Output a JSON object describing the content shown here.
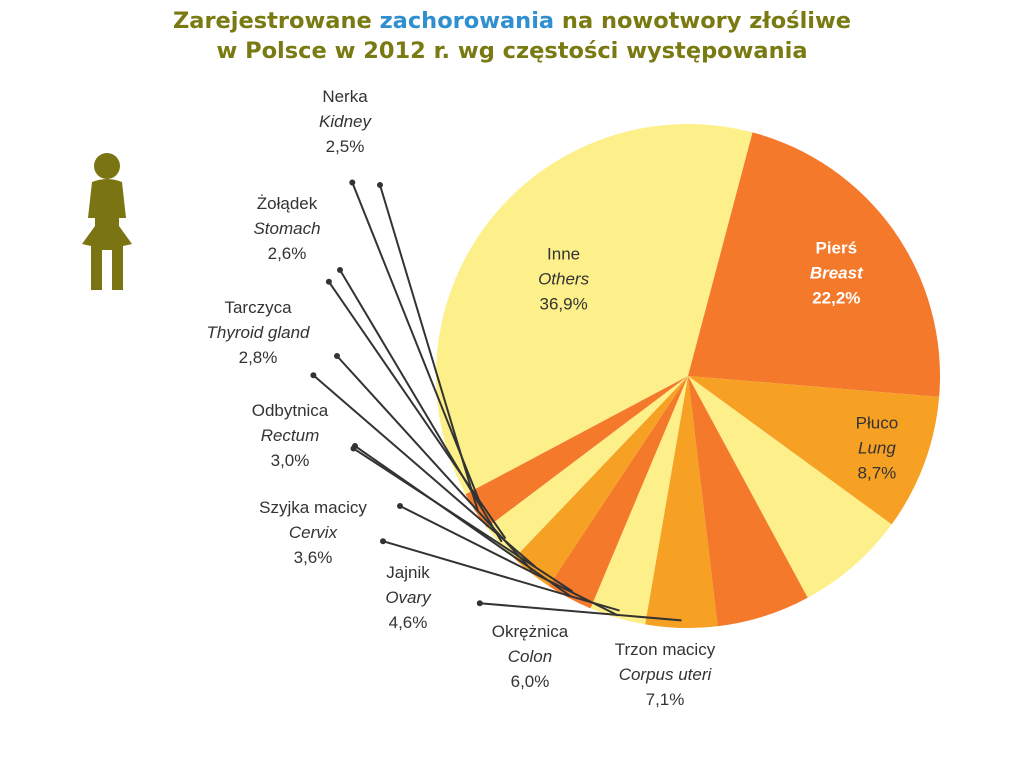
{
  "title": {
    "line1_pre": "Zarejestrowane ",
    "line1_highlight": "zachorowania",
    "line1_post": " na nowotwory złośliwe",
    "line2": "w Polsce w 2012 r. wg częstości występowania"
  },
  "colors": {
    "title": "#7a7a12",
    "highlight": "#2f8fd0",
    "figure_icon": "#7a7412",
    "pale_yellow": "#fdf08a",
    "orange": "#f4792a",
    "amber": "#f6a024"
  },
  "icon": "female-figure-icon",
  "chart_data": {
    "type": "pie",
    "slices": [
      {
        "pl": "Inne",
        "en": "Others",
        "value_label": "36,9%",
        "value": 36.9,
        "color": "#fdf08a"
      },
      {
        "pl": "Pierś",
        "en": "Breast",
        "value_label": "22,2%",
        "value": 22.2,
        "color": "#f4792a"
      },
      {
        "pl": "Płuco",
        "en": "Lung",
        "value_label": "8,7%",
        "value": 8.7,
        "color": "#f6a024"
      },
      {
        "pl": "Trzon macicy",
        "en": "Corpus uteri",
        "value_label": "7,1%",
        "value": 7.1,
        "color": "#fdf08a"
      },
      {
        "pl": "Okrężnica",
        "en": "Colon",
        "value_label": "6,0%",
        "value": 6.0,
        "color": "#f4792a"
      },
      {
        "pl": "Jajnik",
        "en": "Ovary",
        "value_label": "4,6%",
        "value": 4.6,
        "color": "#f6a024"
      },
      {
        "pl": "Szyjka macicy",
        "en": "Cervix",
        "value_label": "3,6%",
        "value": 3.6,
        "color": "#fdf08a"
      },
      {
        "pl": "Odbytnica",
        "en": "Rectum",
        "value_label": "3,0%",
        "value": 3.0,
        "color": "#f4792a"
      },
      {
        "pl": "Tarczyca",
        "en": "Thyroid gland",
        "value_label": "2,8%",
        "value": 2.8,
        "color": "#f6a024"
      },
      {
        "pl": "Żołądek",
        "en": "Stomach",
        "value_label": "2,6%",
        "value": 2.6,
        "color": "#fdf08a"
      },
      {
        "pl": "Nerka",
        "en": "Kidney",
        "value_label": "2,5%",
        "value": 2.5,
        "color": "#f4792a"
      }
    ]
  }
}
